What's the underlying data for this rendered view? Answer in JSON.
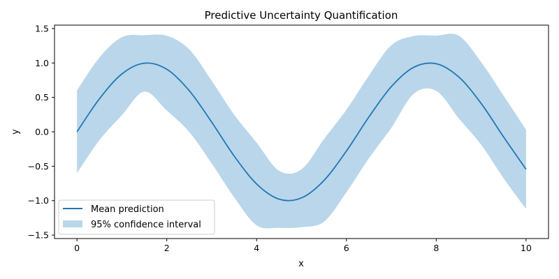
{
  "chart_data": {
    "type": "line",
    "title": "Predictive Uncertainty Quantification",
    "xlabel": "x",
    "ylabel": "y",
    "xlim": [
      -0.5,
      10.5
    ],
    "ylim": [
      -1.55,
      1.55
    ],
    "x_ticks": [
      0,
      2,
      4,
      6,
      8,
      10
    ],
    "x_tick_labels": [
      "0",
      "2",
      "4",
      "6",
      "8",
      "10"
    ],
    "y_ticks": [
      -1.5,
      -1.0,
      -0.5,
      0.0,
      0.5,
      1.0,
      1.5
    ],
    "y_tick_labels": [
      "−1.5",
      "−1.0",
      "−0.5",
      "0.0",
      "0.5",
      "1.0",
      "1.5"
    ],
    "grid": false,
    "legend_position": "lower-left",
    "x": [
      0,
      0.5,
      1,
      1.5,
      2,
      2.5,
      3,
      3.5,
      4,
      4.5,
      5,
      5.5,
      6,
      6.5,
      7,
      7.5,
      8,
      8.5,
      9,
      9.5,
      10
    ],
    "series": [
      {
        "name": "Mean prediction",
        "color": "#1f77b4",
        "values": [
          0.0,
          0.479,
          0.841,
          0.997,
          0.909,
          0.598,
          0.141,
          -0.351,
          -0.757,
          -0.978,
          -0.959,
          -0.706,
          -0.279,
          0.215,
          0.657,
          0.938,
          0.989,
          0.798,
          0.412,
          -0.075,
          -0.544
        ]
      },
      {
        "name": "95% confidence interval",
        "color": "#bad6ea",
        "kind": "band",
        "lower": [
          -0.6,
          -0.121,
          0.241,
          0.584,
          0.309,
          -0.002,
          -0.459,
          -0.951,
          -1.357,
          -1.394,
          -1.385,
          -1.306,
          -0.879,
          -0.385,
          0.057,
          0.553,
          0.595,
          0.198,
          -0.188,
          -0.675,
          -1.12
        ],
        "upper": [
          0.6,
          1.079,
          1.375,
          1.403,
          1.395,
          1.198,
          0.741,
          0.249,
          -0.157,
          -0.565,
          -0.544,
          -0.106,
          0.321,
          0.815,
          1.257,
          1.391,
          1.397,
          1.398,
          1.012,
          0.525,
          0.03
        ]
      }
    ]
  }
}
